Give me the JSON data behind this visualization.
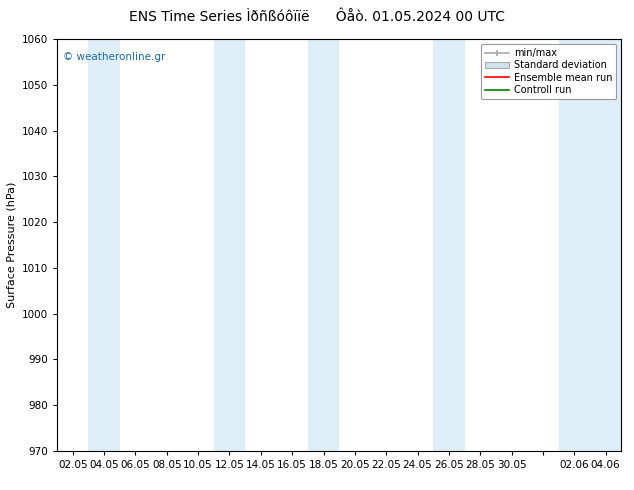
{
  "title": "ENS Time Series Ìðñßóôïïë      Ôåò. 01.05.2024 00 UTC",
  "ylabel": "Surface Pressure (hPa)",
  "ylim": [
    970,
    1060
  ],
  "yticks": [
    970,
    980,
    990,
    1000,
    1010,
    1020,
    1030,
    1040,
    1050,
    1060
  ],
  "xtick_labels": [
    "02.05",
    "04.05",
    "06.05",
    "08.05",
    "10.05",
    "12.05",
    "14.05",
    "16.05",
    "18.05",
    "20.05",
    "22.05",
    "24.05",
    "26.05",
    "28.05",
    "30.05",
    "",
    "02.06",
    "04.06"
  ],
  "watermark": "© weatheronline.gr",
  "legend_items": [
    "min/max",
    "Standard deviation",
    "Ensemble mean run",
    "Controll run"
  ],
  "legend_colors": [
    "#aaaaaa",
    "#cccccc",
    "#ff0000",
    "#008000"
  ],
  "background_color": "#ffffff",
  "stripe_color": "#ddeef8",
  "title_fontsize": 10,
  "axis_fontsize": 8,
  "tick_fontsize": 7.5,
  "stripe_indices": [
    1,
    5,
    8,
    12,
    16,
    17
  ]
}
